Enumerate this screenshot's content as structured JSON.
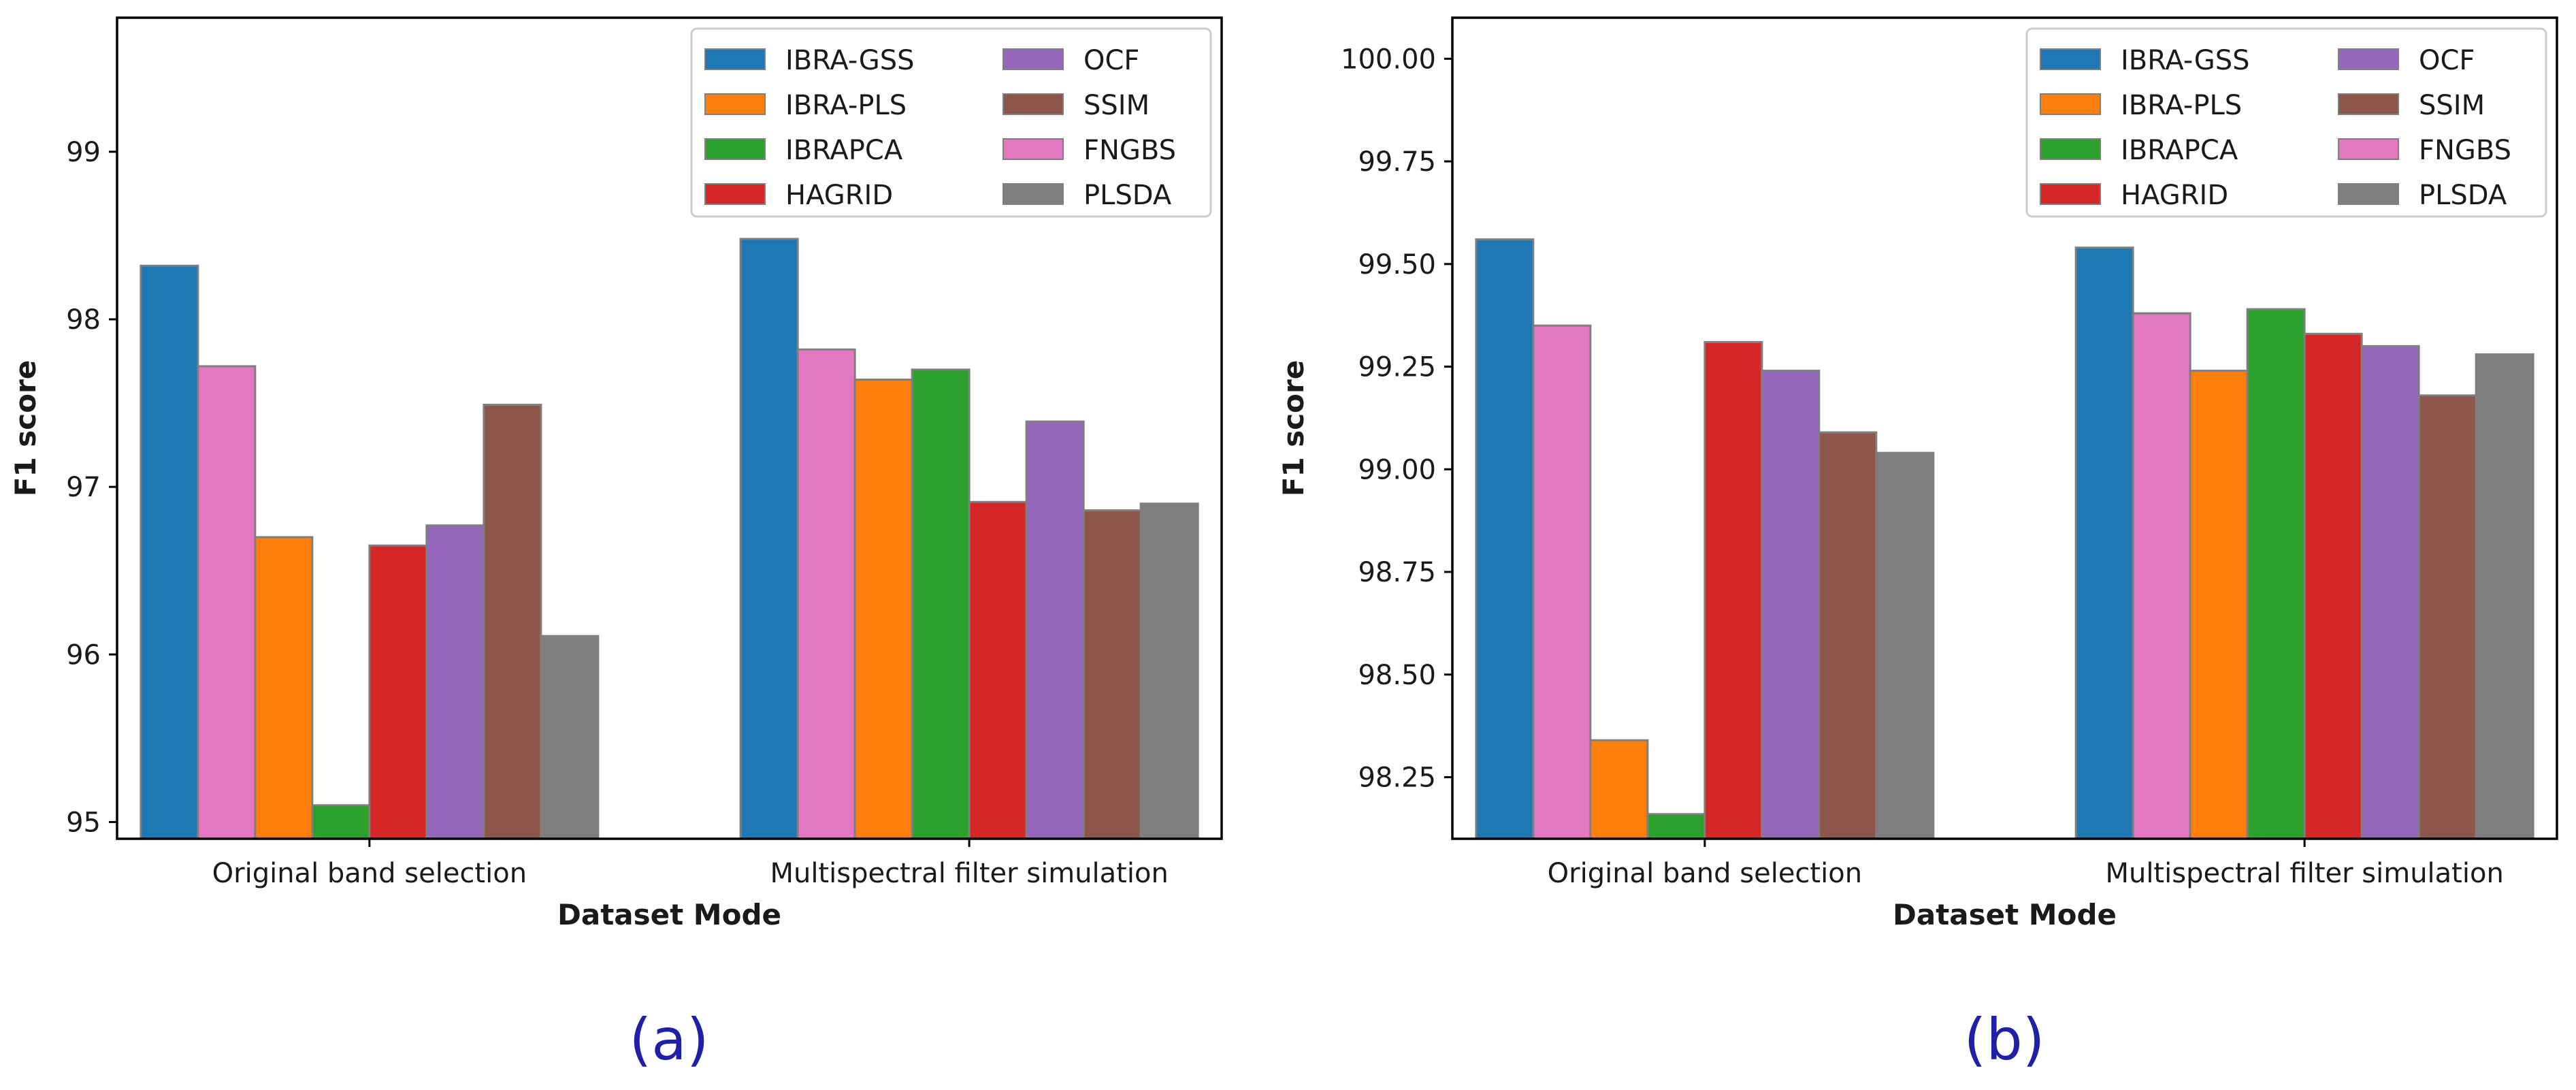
{
  "chart_data": [
    {
      "type": "bar",
      "panel_label": "(a)",
      "xlabel": "Dataset Mode",
      "ylabel": "F1 score",
      "ylim": [
        94.9,
        99.8
      ],
      "yticks": [
        95,
        96,
        97,
        98,
        99
      ],
      "ytick_labels": [
        "95",
        "96",
        "97",
        "98",
        "99"
      ],
      "categories": [
        "Original band selection",
        "Multispectral filter simulation"
      ],
      "grid": false,
      "legend_position": "top-right",
      "series": [
        {
          "name": "IBRA-GSS",
          "color": "#1f77b4",
          "values": [
            98.32,
            98.48
          ]
        },
        {
          "name": "FNGBS",
          "color": "#e377c2",
          "values": [
            97.72,
            97.82
          ]
        },
        {
          "name": "IBRA-PLS",
          "color": "#ff7f0e",
          "values": [
            96.7,
            97.64
          ]
        },
        {
          "name": "IBRAPCA",
          "color": "#2ca02c",
          "values": [
            95.1,
            97.7
          ]
        },
        {
          "name": "HAGRID",
          "color": "#d62728",
          "values": [
            96.65,
            96.91
          ]
        },
        {
          "name": "OCF",
          "color": "#9467bd",
          "values": [
            96.77,
            97.39
          ]
        },
        {
          "name": "SSIM",
          "color": "#8c564b",
          "values": [
            97.49,
            96.86
          ]
        },
        {
          "name": "PLSDA",
          "color": "#7f7f7f",
          "values": [
            96.11,
            96.9
          ]
        }
      ]
    },
    {
      "type": "bar",
      "panel_label": "(b)",
      "xlabel": "Dataset Mode",
      "ylabel": "F1 score",
      "ylim": [
        98.1,
        100.1
      ],
      "yticks": [
        98.25,
        98.5,
        98.75,
        99.0,
        99.25,
        99.5,
        99.75,
        100.0
      ],
      "ytick_labels": [
        "98.25",
        "98.50",
        "98.75",
        "99.00",
        "99.25",
        "99.50",
        "99.75",
        "100.00"
      ],
      "categories": [
        "Original band selection",
        "Multispectral filter simulation"
      ],
      "grid": false,
      "legend_position": "top-right",
      "series": [
        {
          "name": "IBRA-GSS",
          "color": "#1f77b4",
          "values": [
            99.56,
            99.54
          ]
        },
        {
          "name": "FNGBS",
          "color": "#e377c2",
          "values": [
            99.35,
            99.38
          ]
        },
        {
          "name": "IBRA-PLS",
          "color": "#ff7f0e",
          "values": [
            98.34,
            99.24
          ]
        },
        {
          "name": "IBRAPCA",
          "color": "#2ca02c",
          "values": [
            98.16,
            99.39
          ]
        },
        {
          "name": "HAGRID",
          "color": "#d62728",
          "values": [
            99.31,
            99.33
          ]
        },
        {
          "name": "OCF",
          "color": "#9467bd",
          "values": [
            99.24,
            99.3
          ]
        },
        {
          "name": "SSIM",
          "color": "#8c564b",
          "values": [
            99.09,
            99.18
          ]
        },
        {
          "name": "PLSDA",
          "color": "#7f7f7f",
          "values": [
            99.04,
            99.28
          ]
        }
      ]
    }
  ],
  "legend_order": [
    "IBRA-GSS",
    "IBRA-PLS",
    "IBRAPCA",
    "HAGRID",
    "OCF",
    "SSIM",
    "FNGBS",
    "PLSDA"
  ],
  "bar_edge_color": "#7f7f7f"
}
